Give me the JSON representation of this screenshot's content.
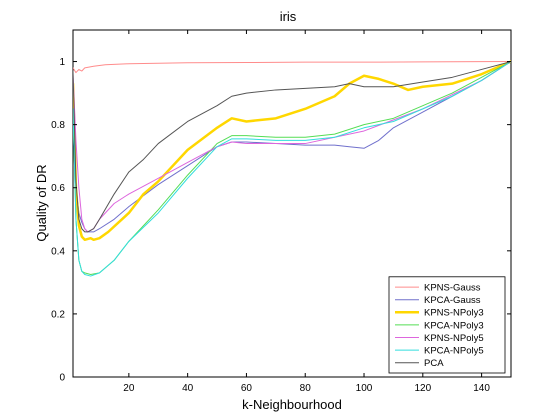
{
  "chart_data": {
    "type": "line",
    "title": "iris",
    "xlabel": "k-Neighbourhood",
    "ylabel": "Quality of DR",
    "xlim": [
      1,
      150
    ],
    "ylim": [
      0,
      1.1
    ],
    "xticks": [
      20,
      40,
      60,
      80,
      100,
      120,
      140
    ],
    "yticks": [
      0,
      0.2,
      0.4,
      0.6,
      0.8,
      1
    ],
    "ytick_labels": [
      "0",
      "0.2",
      "0.4",
      "0.6",
      "0.8",
      "1"
    ],
    "grid": false,
    "legend_position": "bottom-right",
    "series": [
      {
        "name": "KPNS-Gauss",
        "color": "#ff8c8c",
        "width": 1,
        "points": [
          [
            1,
            0.98
          ],
          [
            2,
            0.965
          ],
          [
            3,
            0.975
          ],
          [
            4,
            0.97
          ],
          [
            5,
            0.98
          ],
          [
            8,
            0.985
          ],
          [
            12,
            0.99
          ],
          [
            20,
            0.993
          ],
          [
            40,
            0.996
          ],
          [
            60,
            0.997
          ],
          [
            80,
            0.998
          ],
          [
            100,
            0.998
          ],
          [
            120,
            0.999
          ],
          [
            150,
            1.0
          ]
        ]
      },
      {
        "name": "KPCA-Gauss",
        "color": "#7070cc",
        "width": 1,
        "points": [
          [
            1,
            0.95
          ],
          [
            2,
            0.6
          ],
          [
            3,
            0.52
          ],
          [
            4,
            0.49
          ],
          [
            5,
            0.47
          ],
          [
            6,
            0.46
          ],
          [
            8,
            0.46
          ],
          [
            10,
            0.47
          ],
          [
            15,
            0.5
          ],
          [
            20,
            0.54
          ],
          [
            30,
            0.61
          ],
          [
            40,
            0.67
          ],
          [
            50,
            0.73
          ],
          [
            55,
            0.745
          ],
          [
            60,
            0.745
          ],
          [
            70,
            0.74
          ],
          [
            80,
            0.735
          ],
          [
            90,
            0.735
          ],
          [
            95,
            0.73
          ],
          [
            100,
            0.725
          ],
          [
            105,
            0.75
          ],
          [
            110,
            0.79
          ],
          [
            120,
            0.84
          ],
          [
            130,
            0.89
          ],
          [
            140,
            0.94
          ],
          [
            150,
            1.0
          ]
        ]
      },
      {
        "name": "KPNS-NPoly3",
        "color": "#ffd700",
        "width": 2.5,
        "points": [
          [
            1,
            0.93
          ],
          [
            2,
            0.6
          ],
          [
            3,
            0.48
          ],
          [
            4,
            0.445
          ],
          [
            5,
            0.435
          ],
          [
            7,
            0.44
          ],
          [
            8,
            0.435
          ],
          [
            10,
            0.44
          ],
          [
            13,
            0.46
          ],
          [
            20,
            0.52
          ],
          [
            25,
            0.58
          ],
          [
            30,
            0.62
          ],
          [
            40,
            0.72
          ],
          [
            50,
            0.79
          ],
          [
            55,
            0.82
          ],
          [
            60,
            0.81
          ],
          [
            70,
            0.82
          ],
          [
            80,
            0.85
          ],
          [
            90,
            0.89
          ],
          [
            95,
            0.93
          ],
          [
            100,
            0.955
          ],
          [
            105,
            0.945
          ],
          [
            110,
            0.93
          ],
          [
            115,
            0.91
          ],
          [
            120,
            0.92
          ],
          [
            130,
            0.93
          ],
          [
            140,
            0.96
          ],
          [
            150,
            1.0
          ]
        ]
      },
      {
        "name": "KPCA-NPoly3",
        "color": "#55dd55",
        "width": 1,
        "points": [
          [
            1,
            0.85
          ],
          [
            2,
            0.5
          ],
          [
            3,
            0.37
          ],
          [
            4,
            0.335
          ],
          [
            5,
            0.33
          ],
          [
            7,
            0.325
          ],
          [
            10,
            0.33
          ],
          [
            15,
            0.37
          ],
          [
            20,
            0.43
          ],
          [
            30,
            0.53
          ],
          [
            40,
            0.64
          ],
          [
            50,
            0.74
          ],
          [
            55,
            0.765
          ],
          [
            60,
            0.765
          ],
          [
            70,
            0.76
          ],
          [
            80,
            0.76
          ],
          [
            90,
            0.77
          ],
          [
            100,
            0.8
          ],
          [
            110,
            0.82
          ],
          [
            120,
            0.86
          ],
          [
            130,
            0.9
          ],
          [
            140,
            0.95
          ],
          [
            150,
            1.0
          ]
        ]
      },
      {
        "name": "KPNS-NPoly5",
        "color": "#dd66dd",
        "width": 1,
        "points": [
          [
            1,
            0.96
          ],
          [
            2,
            0.75
          ],
          [
            3,
            0.6
          ],
          [
            4,
            0.5
          ],
          [
            5,
            0.47
          ],
          [
            6,
            0.46
          ],
          [
            8,
            0.47
          ],
          [
            10,
            0.5
          ],
          [
            15,
            0.55
          ],
          [
            20,
            0.58
          ],
          [
            30,
            0.63
          ],
          [
            40,
            0.68
          ],
          [
            50,
            0.73
          ],
          [
            55,
            0.745
          ],
          [
            60,
            0.74
          ],
          [
            80,
            0.74
          ],
          [
            100,
            0.78
          ],
          [
            120,
            0.85
          ],
          [
            140,
            0.94
          ],
          [
            150,
            1.0
          ]
        ]
      },
      {
        "name": "KPCA-NPoly5",
        "color": "#33dddd",
        "width": 1,
        "points": [
          [
            1,
            0.85
          ],
          [
            2,
            0.5
          ],
          [
            3,
            0.37
          ],
          [
            4,
            0.335
          ],
          [
            5,
            0.325
          ],
          [
            7,
            0.32
          ],
          [
            10,
            0.33
          ],
          [
            15,
            0.37
          ],
          [
            20,
            0.43
          ],
          [
            30,
            0.52
          ],
          [
            40,
            0.63
          ],
          [
            50,
            0.73
          ],
          [
            55,
            0.755
          ],
          [
            60,
            0.755
          ],
          [
            70,
            0.75
          ],
          [
            80,
            0.75
          ],
          [
            90,
            0.76
          ],
          [
            100,
            0.79
          ],
          [
            110,
            0.81
          ],
          [
            120,
            0.85
          ],
          [
            130,
            0.89
          ],
          [
            140,
            0.94
          ],
          [
            150,
            1.0
          ]
        ]
      },
      {
        "name": "PCA",
        "color": "#555555",
        "width": 1,
        "points": [
          [
            1,
            0.97
          ],
          [
            2,
            0.62
          ],
          [
            3,
            0.5
          ],
          [
            4,
            0.47
          ],
          [
            5,
            0.46
          ],
          [
            6,
            0.46
          ],
          [
            8,
            0.47
          ],
          [
            10,
            0.5
          ],
          [
            15,
            0.58
          ],
          [
            20,
            0.65
          ],
          [
            25,
            0.69
          ],
          [
            30,
            0.74
          ],
          [
            40,
            0.81
          ],
          [
            50,
            0.86
          ],
          [
            55,
            0.89
          ],
          [
            60,
            0.9
          ],
          [
            70,
            0.91
          ],
          [
            80,
            0.915
          ],
          [
            90,
            0.92
          ],
          [
            95,
            0.93
          ],
          [
            100,
            0.92
          ],
          [
            110,
            0.92
          ],
          [
            120,
            0.935
          ],
          [
            130,
            0.95
          ],
          [
            140,
            0.975
          ],
          [
            150,
            1.0
          ]
        ]
      }
    ]
  }
}
